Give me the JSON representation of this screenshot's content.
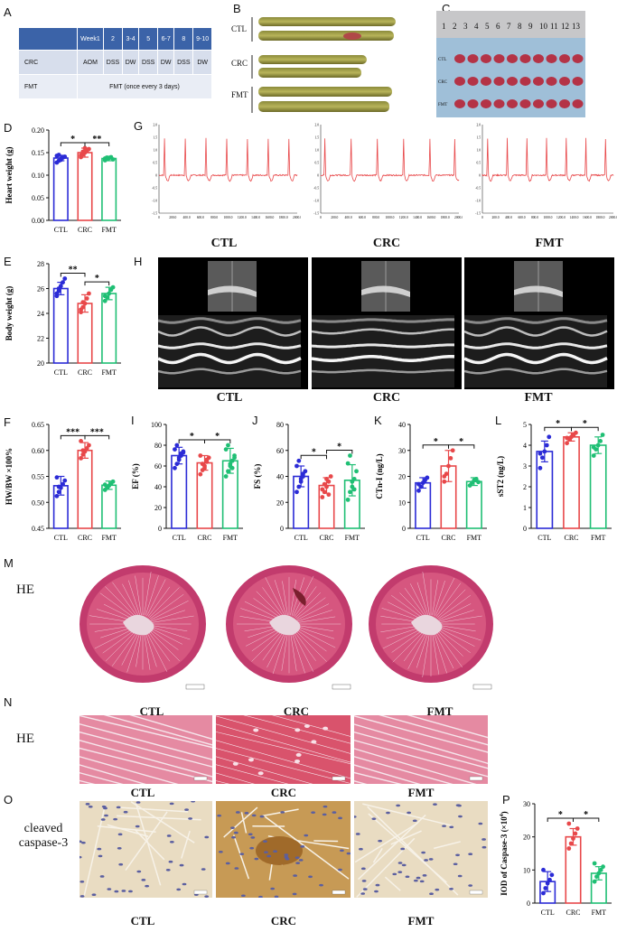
{
  "panel_labels": {
    "A": "A",
    "B": "B",
    "C": "C",
    "D": "D",
    "E": "E",
    "F": "F",
    "G": "G",
    "H": "H",
    "I": "I",
    "J": "J",
    "K": "K",
    "L": "L",
    "M": "M",
    "N": "N",
    "O": "O",
    "P": "P"
  },
  "schedule": {
    "header": [
      "",
      "Week1",
      "2",
      "3-4",
      "5",
      "6-7",
      "8",
      "9-10"
    ],
    "rows": [
      {
        "label": "CRC",
        "cells": [
          "AOM",
          "DSS",
          "DW",
          "DSS",
          "DW",
          "DSS",
          "DW"
        ]
      },
      {
        "label": "FMT",
        "span_text": "FMT (once every 3 days)"
      }
    ]
  },
  "colon_labels": [
    "CTL",
    "CRC",
    "FMT"
  ],
  "ruler_numbers": [
    "1",
    "2",
    "3",
    "4",
    "5",
    "6",
    "7",
    "8",
    "9",
    "10",
    "11",
    "12",
    "13"
  ],
  "tissue_row_labels": [
    "CTL",
    "CRC",
    "FMT"
  ],
  "group_captions": [
    "CTL",
    "CRC",
    "FMT"
  ],
  "stain_labels": {
    "M": "HE",
    "N": "HE",
    "O_line1": "cleaved",
    "O_line2": "caspase-3"
  },
  "colors": {
    "CTL": "#2b2bd6",
    "CRC": "#e8484a",
    "FMT": "#1fbf74",
    "ecg": "#e8484a"
  },
  "ecg": {
    "x_ticks": [
      "0",
      "200.0",
      "400.0",
      "600.0",
      "800.0",
      "1000.0",
      "1200.0",
      "1400.0",
      "1600.0",
      "1800.0",
      "2000.0"
    ],
    "y_ticks": [
      "2.0",
      "1.5",
      "1.0",
      "0.5",
      "0",
      "-0.5",
      "-1.0",
      "-1.5"
    ]
  },
  "chart_data": [
    {
      "id": "D",
      "type": "bar",
      "ylabel": "Heart weight (g)",
      "categories": [
        "CTL",
        "CRC",
        "FMT"
      ],
      "values": [
        0.138,
        0.15,
        0.137
      ],
      "errors": [
        0.006,
        0.01,
        0.005
      ],
      "ylim": [
        0,
        0.2
      ],
      "yticks": [
        "0.00",
        "0.05",
        "0.10",
        "0.15",
        "0.20"
      ],
      "points": [
        [
          0.128,
          0.132,
          0.136,
          0.139,
          0.141,
          0.143,
          0.145,
          0.134
        ],
        [
          0.14,
          0.146,
          0.15,
          0.154,
          0.158,
          0.144,
          0.152,
          0.16
        ],
        [
          0.133,
          0.136,
          0.138,
          0.14,
          0.135,
          0.137,
          0.139
        ]
      ],
      "sig": [
        {
          "from": 0,
          "to": 1,
          "label": "*"
        },
        {
          "from": 1,
          "to": 2,
          "label": "**"
        }
      ]
    },
    {
      "id": "E",
      "type": "bar",
      "ylabel": "Body weight (g)",
      "categories": [
        "CTL",
        "CRC",
        "FMT"
      ],
      "values": [
        26.0,
        24.8,
        25.6
      ],
      "errors": [
        0.5,
        0.7,
        0.5
      ],
      "ylim": [
        20,
        28
      ],
      "yticks": [
        "20",
        "22",
        "24",
        "26",
        "28"
      ],
      "points": [
        [
          25.4,
          25.8,
          26.2,
          26.5,
          26.8,
          25.6,
          26.0
        ],
        [
          24.1,
          24.5,
          24.8,
          25.2,
          25.6,
          24.3,
          24.9
        ],
        [
          25.0,
          25.3,
          25.6,
          25.9,
          26.1,
          25.4
        ]
      ],
      "sig": [
        {
          "from": 0,
          "to": 1,
          "label": "**"
        },
        {
          "from": 1,
          "to": 2,
          "label": "*"
        }
      ]
    },
    {
      "id": "F",
      "type": "bar",
      "ylabel": "HW/BW ×100%",
      "categories": [
        "CTL",
        "CRC",
        "FMT"
      ],
      "values": [
        0.532,
        0.6,
        0.533
      ],
      "errors": [
        0.018,
        0.015,
        0.008
      ],
      "ylim": [
        0.45,
        0.65
      ],
      "yticks": [
        "0.45",
        "0.50",
        "0.55",
        "0.60",
        "0.65"
      ],
      "points": [
        [
          0.512,
          0.52,
          0.528,
          0.535,
          0.542,
          0.548,
          0.53
        ],
        [
          0.585,
          0.592,
          0.598,
          0.604,
          0.61,
          0.618,
          0.6
        ],
        [
          0.524,
          0.528,
          0.532,
          0.536,
          0.54,
          0.534
        ]
      ],
      "sig": [
        {
          "from": 0,
          "to": 1,
          "label": "***"
        },
        {
          "from": 1,
          "to": 2,
          "label": "***"
        }
      ]
    },
    {
      "id": "I",
      "type": "bar",
      "ylabel": "EF (%)",
      "categories": [
        "CTL",
        "CRC",
        "FMT"
      ],
      "values": [
        70,
        63,
        65
      ],
      "errors": [
        8,
        7,
        12
      ],
      "ylim": [
        0,
        100
      ],
      "yticks": [
        "0",
        "20",
        "40",
        "60",
        "80",
        "100"
      ],
      "points": [
        [
          58,
          62,
          66,
          70,
          73,
          76,
          80,
          68,
          72,
          74
        ],
        [
          52,
          56,
          60,
          64,
          68,
          70,
          62,
          58,
          66
        ],
        [
          50,
          55,
          60,
          65,
          70,
          76,
          80,
          62,
          58,
          68
        ]
      ],
      "sig": [
        {
          "from": 0,
          "to": 1,
          "label": "*"
        },
        {
          "from": 1,
          "to": 2,
          "label": "*"
        }
      ]
    },
    {
      "id": "J",
      "type": "bar",
      "ylabel": "FS (%)",
      "categories": [
        "CTL",
        "CRC",
        "FMT"
      ],
      "values": [
        40,
        33,
        37
      ],
      "errors": [
        8,
        6,
        12
      ],
      "ylim": [
        0,
        80
      ],
      "yticks": [
        "0",
        "20",
        "40",
        "60",
        "80"
      ],
      "points": [
        [
          28,
          32,
          36,
          40,
          44,
          48,
          52,
          38,
          42
        ],
        [
          24,
          28,
          32,
          36,
          40,
          30,
          34,
          38,
          26
        ],
        [
          22,
          28,
          32,
          38,
          44,
          50,
          56,
          36,
          30
        ]
      ],
      "sig": [
        {
          "from": 0,
          "to": 1,
          "label": "*"
        },
        {
          "from": 1,
          "to": 2,
          "label": "*"
        }
      ]
    },
    {
      "id": "K",
      "type": "bar",
      "ylabel": "CTn-I (ng/L)",
      "categories": [
        "CTL",
        "CRC",
        "FMT"
      ],
      "values": [
        17.5,
        24,
        18
      ],
      "errors": [
        2,
        6,
        1.5
      ],
      "ylim": [
        0,
        40
      ],
      "yticks": [
        "0",
        "10",
        "20",
        "30",
        "40"
      ],
      "points": [
        [
          14.5,
          16,
          17.5,
          18.5,
          19.5,
          17
        ],
        [
          18,
          21,
          24,
          27,
          30,
          20
        ],
        [
          16.5,
          17.5,
          18.5,
          19,
          17.8
        ]
      ],
      "sig": [
        {
          "from": 0,
          "to": 1,
          "label": "*"
        },
        {
          "from": 1,
          "to": 2,
          "label": "*"
        }
      ]
    },
    {
      "id": "L",
      "type": "bar",
      "ylabel": "sST2 (ng/L)",
      "categories": [
        "CTL",
        "CRC",
        "FMT"
      ],
      "values": [
        3.7,
        4.4,
        4.0
      ],
      "errors": [
        0.5,
        0.2,
        0.4
      ],
      "ylim": [
        0,
        5
      ],
      "yticks": [
        "0",
        "1",
        "2",
        "3",
        "4",
        "5"
      ],
      "points": [
        [
          2.9,
          3.4,
          3.7,
          4.0,
          4.4,
          3.6
        ],
        [
          4.1,
          4.3,
          4.4,
          4.5,
          4.6,
          4.35
        ],
        [
          3.5,
          3.8,
          4.0,
          4.2,
          4.5,
          3.9
        ]
      ],
      "sig": [
        {
          "from": 0,
          "to": 1,
          "label": "*"
        },
        {
          "from": 1,
          "to": 2,
          "label": "*"
        }
      ]
    },
    {
      "id": "P",
      "type": "bar",
      "ylabel": "IOD of Caspase-3 (×10",
      "ylabel_sup": "4",
      "ylabel_end": ")",
      "categories": [
        "CTL",
        "CRC",
        "FMT"
      ],
      "values": [
        6.5,
        20,
        9
      ],
      "errors": [
        3,
        2.5,
        2
      ],
      "ylim": [
        0,
        30
      ],
      "yticks": [
        "0",
        "10",
        "20",
        "30"
      ],
      "points": [
        [
          3,
          4.5,
          6,
          7,
          8.5,
          10
        ],
        [
          16.5,
          18,
          19.5,
          21,
          22.5,
          24
        ],
        [
          6.5,
          8,
          9,
          10,
          11,
          12
        ]
      ],
      "sig": [
        {
          "from": 0,
          "to": 1,
          "label": "*"
        },
        {
          "from": 1,
          "to": 2,
          "label": "*"
        }
      ]
    }
  ]
}
